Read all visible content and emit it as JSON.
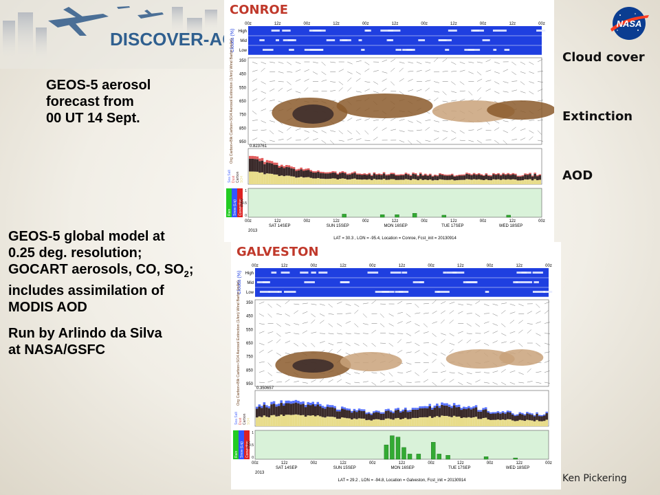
{
  "header": {
    "mission_logo_text": "DISCOVER-AQ",
    "agency_logo_text": "NASA"
  },
  "left_text": {
    "forecast_lines": [
      "GEOS-5 aerosol",
      "forecast from",
      "00 UT 14 Sept."
    ],
    "model_lines": [
      "GEOS-5 global model at",
      "0.25 deg. resolution;",
      "GOCART aerosols, CO, SO",
      "includes assimilation of",
      "MODIS AOD"
    ],
    "model_line3_subscript": "2",
    "model_line3_suffix": ";",
    "run_lines": [
      "Run by Arlindo da Silva",
      "at NASA/GSFC"
    ]
  },
  "right_labels": {
    "cloud": "Cloud cover",
    "extinction": "Extinction",
    "aod": "AOD"
  },
  "credit": "Ken Pickering",
  "panels": [
    {
      "title": "CONROE",
      "cloud_labels": [
        "High",
        "Mid",
        "Low"
      ],
      "cloud_axis": "Clouds (%)",
      "pressure_levels": [
        "350",
        "450",
        "550",
        "650",
        "750",
        "850",
        "950"
      ],
      "extinction_axis": "Org Carbon+Blk Carbon+SO4 Aerosol Extinction (1/km) Wind Barbs (m/hr)",
      "aod_max": "0.823761",
      "aod_legend": [
        "Sea Salt",
        "Dust",
        "Carbon",
        "SO4"
      ],
      "precip_legend": [
        "Rain",
        "Snow (Liq)",
        "Convective"
      ],
      "precip_unit": "(mm)",
      "precip_ticks": [
        "1",
        "0.5",
        "0"
      ],
      "time_ticks": [
        "00z",
        "12z",
        "00z",
        "12z",
        "00z",
        "12z",
        "00z",
        "12z",
        "00z",
        "12z",
        "00z"
      ],
      "day_labels": [
        "SAT 14SEP",
        "SUN 15SEP",
        "MON 16SEP",
        "TUE 17SEP",
        "WED 18SEP"
      ],
      "year": "2013",
      "footer": "LAT = 30.3 , LON = -95.4, Location = Conroe, Fcst_init = 20130914"
    },
    {
      "title": "GALVESTON",
      "cloud_labels": [
        "High",
        "Mid",
        "Low"
      ],
      "cloud_axis": "Clouds (%)",
      "pressure_levels": [
        "350",
        "450",
        "550",
        "650",
        "750",
        "850",
        "950"
      ],
      "extinction_axis": "Org Carbon+Blk Carbon+SO4 Aerosol Extinction (1/km) Wind Barbs (m/hr)",
      "aod_max": "0.350657",
      "aod_legend": [
        "Sea Salt",
        "Dust",
        "Carbon",
        "SO4"
      ],
      "precip_legend": [
        "Rain",
        "Snow (Liq)",
        "Convective"
      ],
      "precip_unit": "(mm)",
      "precip_ticks": [
        "1",
        "0.5",
        "0"
      ],
      "time_ticks": [
        "00z",
        "12z",
        "00z",
        "12z",
        "00z",
        "12z",
        "00z",
        "12z",
        "00z",
        "12z",
        "00z"
      ],
      "day_labels": [
        "SAT 14SEP",
        "SUN 15SEP",
        "MON 16SEP",
        "TUE 17SEP",
        "WED 18SEP"
      ],
      "year": "2013",
      "footer": "LAT = 29.2 , LON = -94.8, Location = Galveston, Fcst_init = 20130914"
    }
  ],
  "colors": {
    "cloud_band": "#1f3fe0",
    "plume": "#8b5a2b",
    "plume_light": "#c9a27a",
    "sulfate": "#e8dc8a",
    "carbon": "#3a2a2a",
    "dust": "#e05a5a",
    "seasalt": "#5570ff",
    "precip_bg": "#d9f2d9",
    "precip_bar": "#33aa33",
    "title_red": "#c0392b"
  }
}
